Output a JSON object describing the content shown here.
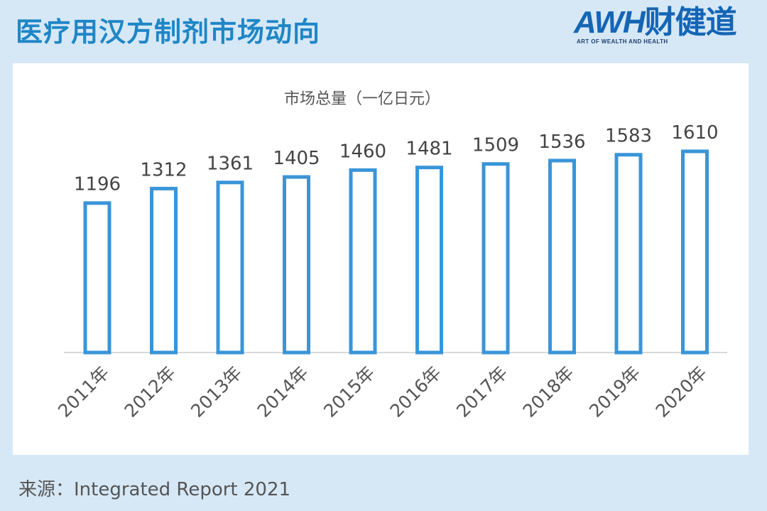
{
  "header": {
    "title": "医疗用汉方制剂市场动向"
  },
  "logo": {
    "text": "AWH",
    "text_cn": "财健道",
    "tagline": "ART OF WEALTH AND HEALTH"
  },
  "source": {
    "label": "来源：Integrated Report 2021"
  },
  "colors": {
    "accent": "#1f86c6",
    "bar_stroke": "#3a95d8",
    "background": "#d6e8f6"
  },
  "chart_data": {
    "type": "bar",
    "title": "市场总量（一亿日元）",
    "categories": [
      "2011年",
      "2012年",
      "2013年",
      "2014年",
      "2015年",
      "2016年",
      "2017年",
      "2018年",
      "2019年",
      "2020年"
    ],
    "values": [
      1196,
      1312,
      1361,
      1405,
      1460,
      1481,
      1509,
      1536,
      1583,
      1610
    ],
    "data_labels": [
      "1196",
      "1312",
      "1361",
      "1405",
      "1460",
      "1481",
      "1509",
      "1536",
      "1583",
      "1610"
    ],
    "xlabel": "",
    "ylabel": "",
    "ylim": [
      0,
      1700
    ],
    "grid": false,
    "legend": "none"
  }
}
